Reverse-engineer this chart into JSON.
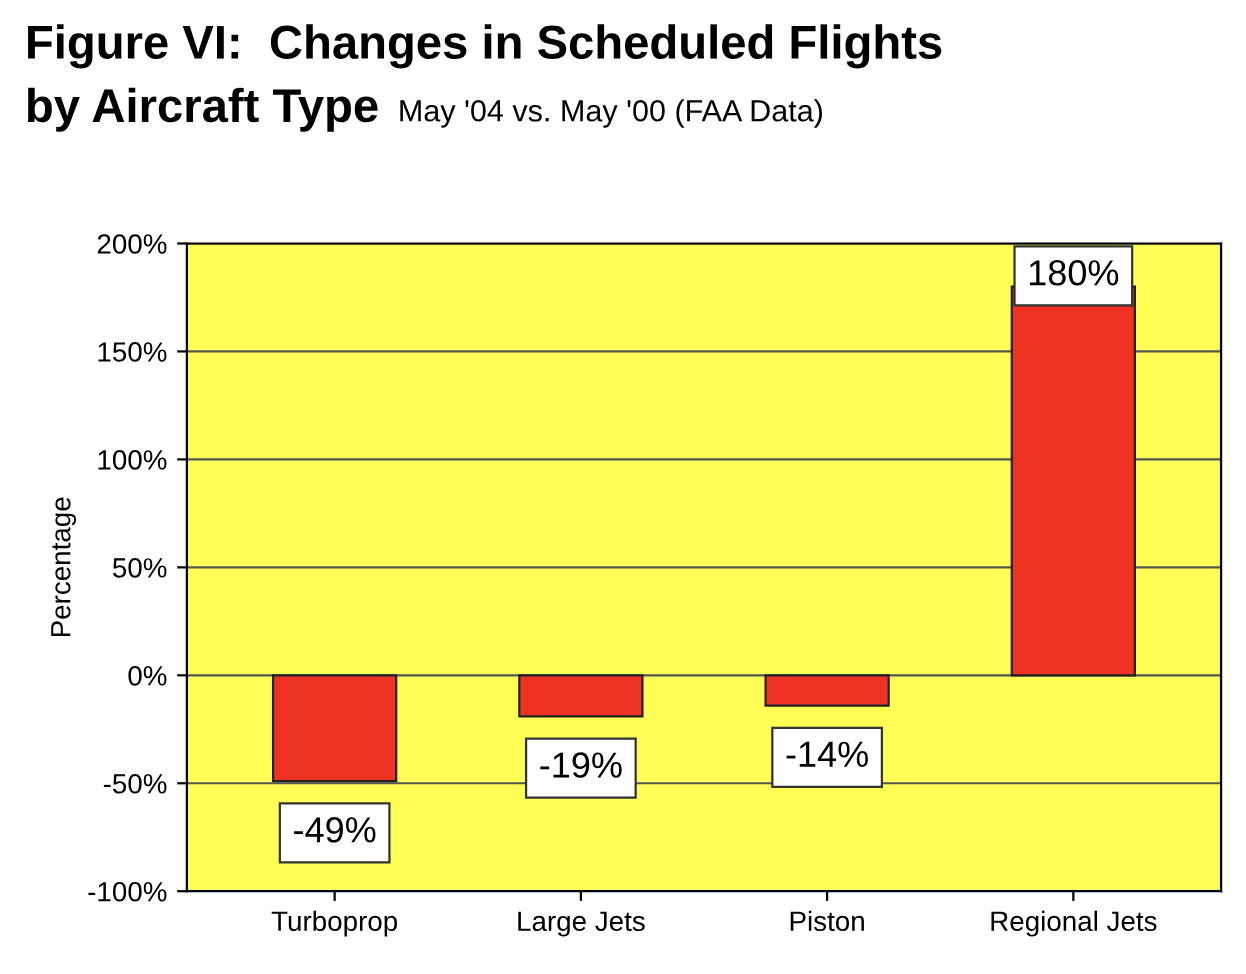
{
  "chart_data": {
    "type": "bar",
    "title": "Figure VI:  Changes in Scheduled Flights\nby Aircraft Type",
    "subtitle": "May '04 vs. May '00 (FAA Data)",
    "ylabel": "Percentage",
    "categories": [
      "Turboprop",
      "Large Jets",
      "Piston",
      "Regional Jets"
    ],
    "values": [
      -49,
      -19,
      -14,
      180
    ],
    "color": "#ee3322",
    "value_labels": [
      "-49%",
      "-19%",
      "-14%",
      "180%"
    ],
    "ylim": [
      -100,
      200
    ],
    "yticks": [
      {
        "value": -100,
        "label": "-100%"
      },
      {
        "value": -50,
        "label": "-50%"
      },
      {
        "value": 0,
        "label": "0%"
      },
      {
        "value": 50,
        "label": "50%"
      },
      {
        "value": 100,
        "label": "100%"
      },
      {
        "value": 150,
        "label": "150%"
      },
      {
        "value": 200,
        "label": "200%"
      }
    ],
    "grid": "y",
    "legend": false
  }
}
